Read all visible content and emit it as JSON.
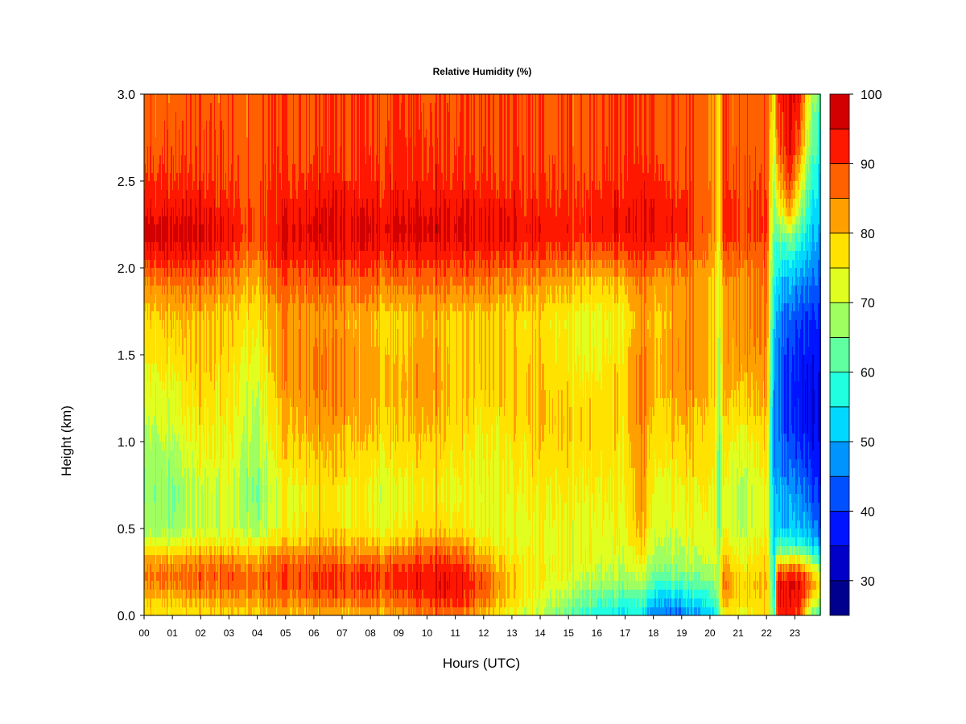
{
  "chart_data": {
    "type": "heatmap",
    "title": "Relative Humidity (%)",
    "xlabel": "Hours (UTC)",
    "ylabel": "Height (km)",
    "x_ticks": [
      "00",
      "01",
      "02",
      "03",
      "04",
      "05",
      "06",
      "07",
      "08",
      "09",
      "10",
      "11",
      "12",
      "13",
      "14",
      "15",
      "16",
      "17",
      "18",
      "19",
      "20",
      "21",
      "22",
      "23"
    ],
    "y_ticks": [
      "0.0",
      "0.5",
      "1.0",
      "1.5",
      "2.0",
      "2.5",
      "3.0"
    ],
    "xlim": [
      0,
      23.9
    ],
    "ylim": [
      0,
      3.0
    ],
    "colorbar": {
      "levels": [
        25,
        30,
        35,
        40,
        45,
        50,
        55,
        60,
        65,
        70,
        75,
        80,
        85,
        90,
        95,
        100
      ],
      "colors": [
        "#00008f",
        "#0000c8",
        "#0014ff",
        "#0050ff",
        "#0094ff",
        "#00d8ff",
        "#20ffe0",
        "#60ff9f",
        "#a0ff60",
        "#e0ff20",
        "#ffe200",
        "#ffa000",
        "#ff6000",
        "#ff1800",
        "#d20000",
        "#860000"
      ],
      "tick_labels": [
        "30",
        "40",
        "50",
        "60",
        "70",
        "80",
        "90",
        "100"
      ],
      "tick_values": [
        30,
        40,
        50,
        60,
        70,
        80,
        90,
        100
      ]
    },
    "heights_km": [
      0.0,
      0.1,
      0.2,
      0.3,
      0.4,
      0.5,
      0.7,
      0.9,
      1.1,
      1.3,
      1.5,
      1.7,
      1.9,
      2.1,
      2.2,
      2.3,
      2.5,
      2.7,
      3.0
    ],
    "profiles": [
      {
        "hour": 0.0,
        "rh": [
          78,
          80,
          86,
          84,
          76,
          68,
          66,
          67,
          70,
          73,
          76,
          78,
          84,
          94,
          97,
          95,
          91,
          89,
          88
        ]
      },
      {
        "hour": 1.0,
        "rh": [
          76,
          80,
          87,
          84,
          75,
          67,
          65,
          68,
          72,
          74,
          78,
          80,
          86,
          95,
          97,
          95,
          91,
          89,
          88
        ]
      },
      {
        "hour": 2.0,
        "rh": [
          76,
          82,
          88,
          85,
          77,
          70,
          70,
          73,
          76,
          78,
          80,
          80,
          86,
          94,
          97,
          95,
          91,
          89,
          88
        ]
      },
      {
        "hour": 3.0,
        "rh": [
          78,
          83,
          89,
          86,
          78,
          72,
          72,
          74,
          76,
          77,
          78,
          79,
          84,
          92,
          94,
          93,
          90,
          89,
          88
        ]
      },
      {
        "hour": 3.9,
        "rh": [
          78,
          83,
          87,
          83,
          75,
          67,
          64,
          66,
          68,
          70,
          73,
          76,
          80,
          86,
          89,
          88,
          87,
          87,
          87
        ]
      },
      {
        "hour": 5.0,
        "rh": [
          80,
          86,
          90,
          88,
          81,
          75,
          74,
          78,
          81,
          83,
          84,
          84,
          88,
          94,
          96,
          94,
          91,
          90,
          90
        ]
      },
      {
        "hour": 6.0,
        "rh": [
          81,
          88,
          92,
          89,
          83,
          78,
          77,
          80,
          83,
          86,
          86,
          84,
          88,
          95,
          97,
          96,
          92,
          90,
          90
        ]
      },
      {
        "hour": 7.0,
        "rh": [
          80,
          87,
          91,
          88,
          82,
          77,
          76,
          79,
          82,
          84,
          84,
          82,
          87,
          94,
          96,
          95,
          92,
          90,
          90
        ]
      },
      {
        "hour": 8.0,
        "rh": [
          80,
          87,
          91,
          88,
          80,
          74,
          73,
          76,
          80,
          82,
          82,
          80,
          86,
          93,
          95,
          94,
          91,
          89,
          89
        ]
      },
      {
        "hour": 9.0,
        "rh": [
          81,
          88,
          92,
          89,
          81,
          75,
          73,
          76,
          79,
          80,
          79,
          77,
          85,
          93,
          96,
          95,
          92,
          91,
          90
        ]
      },
      {
        "hour": 10.0,
        "rh": [
          85,
          92,
          95,
          92,
          86,
          79,
          77,
          79,
          82,
          84,
          84,
          82,
          87,
          94,
          97,
          96,
          92,
          91,
          90
        ]
      },
      {
        "hour": 11.0,
        "rh": [
          86,
          94,
          96,
          92,
          85,
          78,
          75,
          77,
          79,
          80,
          79,
          79,
          86,
          94,
          97,
          96,
          92,
          91,
          90
        ]
      },
      {
        "hour": 12.0,
        "rh": [
          80,
          87,
          89,
          84,
          78,
          73,
          73,
          75,
          76,
          78,
          79,
          79,
          85,
          92,
          95,
          94,
          91,
          90,
          90
        ]
      },
      {
        "hour": 13.0,
        "rh": [
          74,
          78,
          79,
          77,
          74,
          73,
          74,
          76,
          78,
          79,
          79,
          78,
          84,
          92,
          95,
          94,
          91,
          90,
          90
        ]
      },
      {
        "hour": 14.0,
        "rh": [
          70,
          73,
          75,
          75,
          74,
          74,
          76,
          78,
          80,
          80,
          79,
          78,
          83,
          91,
          94,
          93,
          90,
          89,
          89
        ]
      },
      {
        "hour": 15.0,
        "rh": [
          62,
          67,
          72,
          73,
          73,
          73,
          75,
          77,
          78,
          77,
          75,
          74,
          80,
          89,
          92,
          91,
          89,
          88,
          88
        ]
      },
      {
        "hour": 16.0,
        "rh": [
          56,
          62,
          68,
          71,
          72,
          73,
          75,
          76,
          77,
          76,
          74,
          73,
          78,
          88,
          92,
          92,
          90,
          89,
          89
        ]
      },
      {
        "hour": 17.0,
        "rh": [
          53,
          60,
          67,
          70,
          72,
          73,
          75,
          76,
          77,
          78,
          77,
          75,
          80,
          90,
          94,
          94,
          91,
          90,
          90
        ]
      },
      {
        "hour": 17.6,
        "rh": [
          55,
          62,
          70,
          75,
          79,
          82,
          84,
          85,
          86,
          87,
          86,
          84,
          86,
          92,
          95,
          95,
          92,
          90,
          90
        ]
      },
      {
        "hour": 18.0,
        "rh": [
          45,
          53,
          62,
          67,
          70,
          72,
          74,
          76,
          78,
          80,
          80,
          79,
          82,
          91,
          95,
          95,
          92,
          90,
          90
        ]
      },
      {
        "hour": 19.0,
        "rh": [
          44,
          53,
          63,
          68,
          71,
          73,
          75,
          78,
          81,
          84,
          85,
          84,
          84,
          90,
          93,
          93,
          90,
          89,
          89
        ]
      },
      {
        "hour": 19.8,
        "rh": [
          50,
          57,
          65,
          70,
          72,
          74,
          76,
          78,
          80,
          82,
          83,
          82,
          82,
          87,
          89,
          89,
          88,
          87,
          87
        ]
      },
      {
        "hour": 20.2,
        "rh": [
          55,
          62,
          68,
          72,
          74,
          75,
          76,
          77,
          78,
          79,
          80,
          79,
          79,
          83,
          84,
          85,
          85,
          85,
          85
        ]
      },
      {
        "hour": 20.35,
        "rh": [
          62,
          68,
          70,
          68,
          64,
          60,
          58,
          58,
          60,
          62,
          64,
          66,
          68,
          70,
          72,
          72,
          72,
          72,
          72
        ]
      },
      {
        "hour": 20.5,
        "rh": [
          72,
          82,
          84,
          80,
          76,
          72,
          72,
          74,
          77,
          80,
          82,
          82,
          82,
          87,
          90,
          90,
          89,
          88,
          88
        ]
      },
      {
        "hour": 21.0,
        "rh": [
          75,
          78,
          78,
          76,
          73,
          70,
          69,
          72,
          76,
          80,
          83,
          84,
          84,
          88,
          91,
          91,
          89,
          88,
          88
        ]
      },
      {
        "hour": 22.0,
        "rh": [
          78,
          80,
          81,
          79,
          77,
          75,
          75,
          77,
          80,
          83,
          85,
          86,
          86,
          89,
          91,
          91,
          90,
          89,
          89
        ]
      },
      {
        "hour": 22.3,
        "rh": [
          62,
          58,
          55,
          54,
          52,
          50,
          48,
          46,
          45,
          46,
          48,
          52,
          56,
          60,
          62,
          64,
          68,
          72,
          76
        ]
      },
      {
        "hour": 22.4,
        "rh": [
          92,
          93,
          94,
          80,
          60,
          52,
          50,
          47,
          45,
          44,
          45,
          47,
          52,
          58,
          62,
          68,
          78,
          86,
          90
        ]
      },
      {
        "hour": 22.8,
        "rh": [
          93,
          94,
          96,
          82,
          60,
          52,
          49,
          44,
          40,
          40,
          41,
          44,
          50,
          60,
          70,
          82,
          92,
          96,
          97
        ]
      },
      {
        "hour": 23.2,
        "rh": [
          90,
          92,
          95,
          80,
          58,
          50,
          46,
          41,
          37,
          36,
          37,
          40,
          46,
          54,
          60,
          66,
          76,
          86,
          92
        ]
      },
      {
        "hour": 23.5,
        "rh": [
          66,
          80,
          88,
          72,
          54,
          48,
          42,
          38,
          34,
          34,
          36,
          38,
          44,
          50,
          52,
          55,
          60,
          66,
          72
        ]
      },
      {
        "hour": 23.9,
        "rh": [
          60,
          72,
          80,
          66,
          52,
          47,
          42,
          40,
          38,
          38,
          40,
          42,
          46,
          50,
          52,
          54,
          56,
          60,
          64
        ]
      }
    ]
  }
}
